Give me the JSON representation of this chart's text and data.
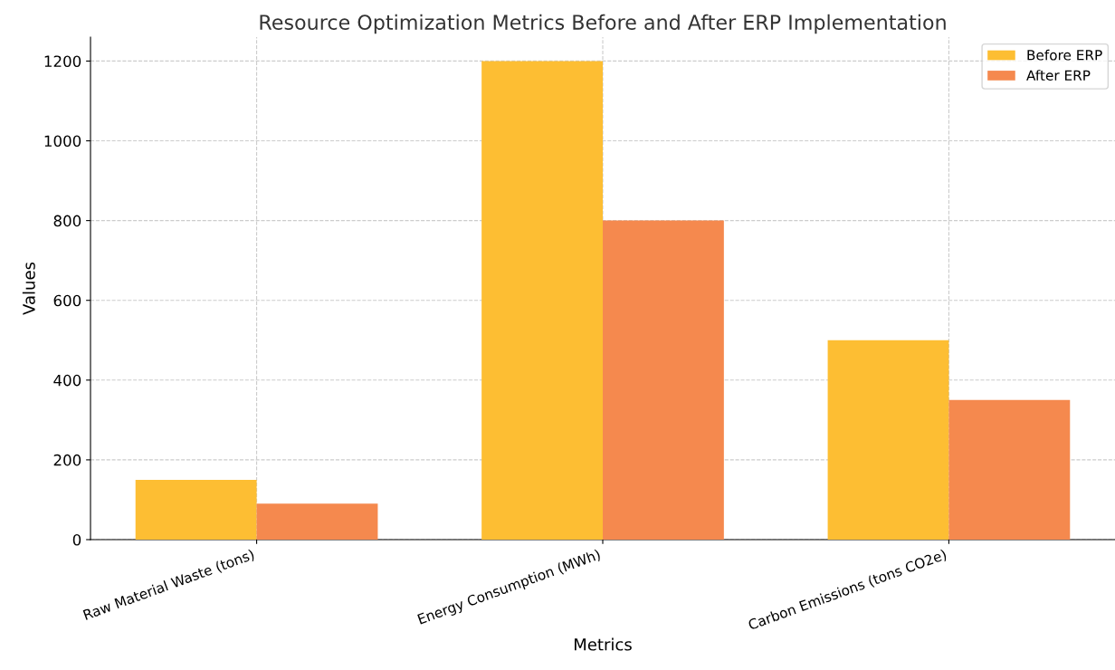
{
  "chart_data": {
    "type": "bar",
    "title": "Resource Optimization Metrics Before and After ERP Implementation",
    "xlabel": "Metrics",
    "ylabel": "Values",
    "categories": [
      "Raw Material Waste (tons)",
      "Energy Consumption (MWh)",
      "Carbon Emissions (tons CO2e)"
    ],
    "series": [
      {
        "name": "Before ERP",
        "color": "#fdbe33",
        "values": [
          150,
          1200,
          500
        ]
      },
      {
        "name": "After ERP",
        "color": "#f5894e",
        "values": [
          90,
          800,
          350
        ]
      }
    ],
    "ylim": [
      0,
      1260
    ],
    "yticks": [
      0,
      200,
      400,
      600,
      800,
      1000,
      1200
    ],
    "grid": true,
    "legend": "top right"
  }
}
